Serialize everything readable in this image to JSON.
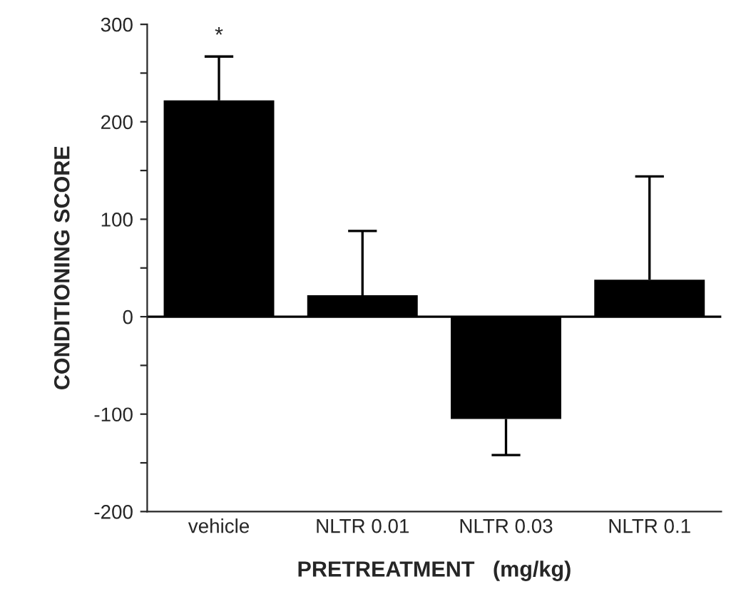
{
  "chart_data": {
    "type": "bar",
    "xlabel": "PRETREATMENT   (mg/kg)",
    "ylabel": "CONDITIONING SCORE",
    "categories": [
      "vehicle",
      "NLTR 0.01",
      "NLTR 0.03",
      "NLTR 0.1"
    ],
    "values": [
      222,
      22,
      -105,
      38
    ],
    "errors": [
      [
        222,
        267
      ],
      [
        22,
        88
      ],
      [
        -142,
        -105
      ],
      [
        38,
        144
      ]
    ],
    "color": "#000000",
    "ylim": [
      -200,
      300
    ],
    "yticks": [
      -200,
      {
        "value": -150,
        "label": null
      },
      -100,
      {
        "value": -50,
        "label": null
      },
      0,
      {
        "value": 50,
        "label": null
      },
      100,
      {
        "value": 150,
        "label": null
      },
      200,
      {
        "value": 250,
        "label": null
      },
      300
    ],
    "annotations": [
      "*"
    ],
    "ref_lines": [
      {
        "axis": "y",
        "value": 0
      }
    ]
  }
}
